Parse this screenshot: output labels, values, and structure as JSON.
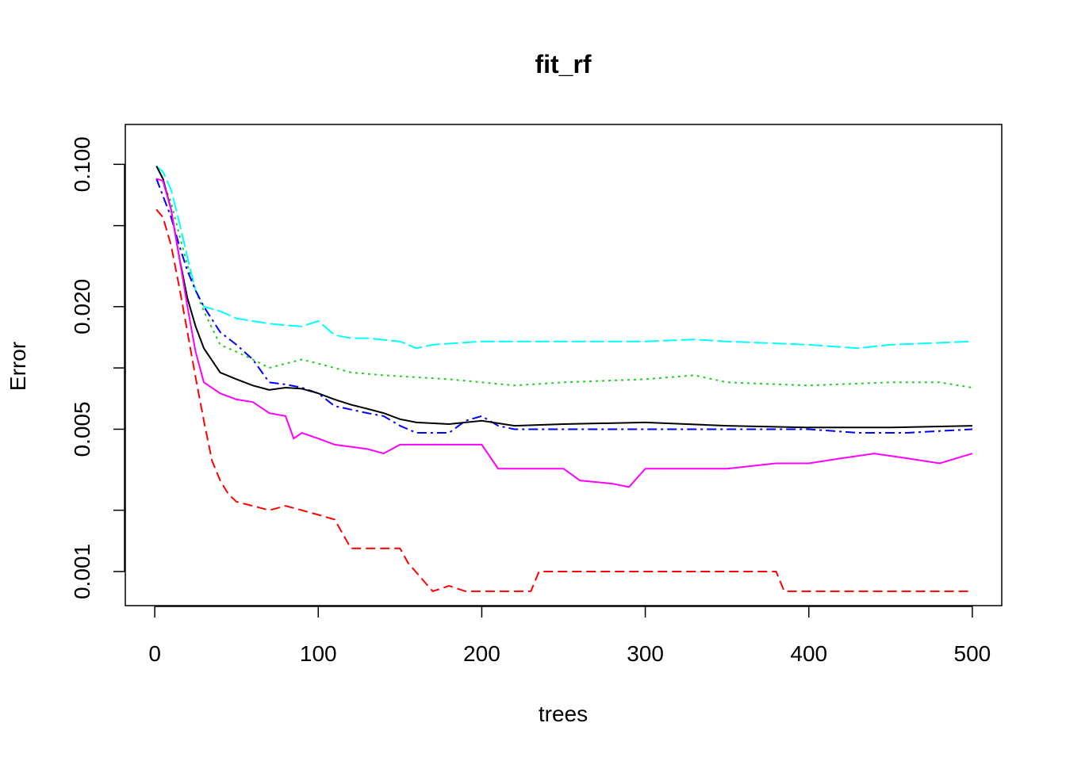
{
  "chart_data": {
    "type": "line",
    "title": "fit_rf",
    "xlabel": "trees",
    "ylabel": "Error",
    "log_y": true,
    "xlim": [
      -18,
      518
    ],
    "ylim": [
      0.00068,
      0.157
    ],
    "xticks": [
      0,
      100,
      200,
      300,
      400,
      500
    ],
    "xtick_labels": [
      "0",
      "100",
      "200",
      "300",
      "400",
      "500"
    ],
    "yticks": [
      0.1,
      0.05,
      0.02,
      0.01,
      0.005,
      0.002,
      0.001
    ],
    "ytick_labels": [
      "0.100",
      "",
      "0.020",
      "",
      "0.005",
      "",
      "0.001"
    ],
    "grid": false,
    "legend": "none",
    "series": [
      {
        "color": "#00ffff",
        "dash": "18,5",
        "points": [
          [
            1,
            0.098
          ],
          [
            5,
            0.092
          ],
          [
            10,
            0.075
          ],
          [
            15,
            0.052
          ],
          [
            20,
            0.035
          ],
          [
            25,
            0.024
          ],
          [
            30,
            0.02
          ],
          [
            40,
            0.019
          ],
          [
            50,
            0.0175
          ],
          [
            60,
            0.017
          ],
          [
            70,
            0.0165
          ],
          [
            80,
            0.0162
          ],
          [
            90,
            0.016
          ],
          [
            100,
            0.017
          ],
          [
            110,
            0.0145
          ],
          [
            120,
            0.014
          ],
          [
            130,
            0.014
          ],
          [
            150,
            0.0135
          ],
          [
            160,
            0.0125
          ],
          [
            170,
            0.013
          ],
          [
            200,
            0.0135
          ],
          [
            250,
            0.0135
          ],
          [
            300,
            0.0135
          ],
          [
            330,
            0.0138
          ],
          [
            350,
            0.0135
          ],
          [
            400,
            0.013
          ],
          [
            430,
            0.0125
          ],
          [
            450,
            0.013
          ],
          [
            500,
            0.0135
          ]
        ]
      },
      {
        "color": "#22cd22",
        "dash": "3,5",
        "points": [
          [
            1,
            0.085
          ],
          [
            5,
            0.082
          ],
          [
            10,
            0.065
          ],
          [
            15,
            0.045
          ],
          [
            20,
            0.032
          ],
          [
            25,
            0.024
          ],
          [
            30,
            0.019
          ],
          [
            40,
            0.013
          ],
          [
            50,
            0.012
          ],
          [
            60,
            0.011
          ],
          [
            70,
            0.01
          ],
          [
            80,
            0.0105
          ],
          [
            90,
            0.011
          ],
          [
            100,
            0.0105
          ],
          [
            110,
            0.01
          ],
          [
            120,
            0.0095
          ],
          [
            140,
            0.0092
          ],
          [
            160,
            0.009
          ],
          [
            180,
            0.0088
          ],
          [
            200,
            0.0085
          ],
          [
            220,
            0.0082
          ],
          [
            250,
            0.0085
          ],
          [
            300,
            0.0088
          ],
          [
            330,
            0.0092
          ],
          [
            350,
            0.0085
          ],
          [
            400,
            0.0082
          ],
          [
            450,
            0.0085
          ],
          [
            480,
            0.0085
          ],
          [
            500,
            0.008
          ]
        ]
      },
      {
        "color": "#0000ff",
        "dash": "12,5,3,5",
        "points": [
          [
            1,
            0.085
          ],
          [
            5,
            0.07
          ],
          [
            10,
            0.055
          ],
          [
            15,
            0.04
          ],
          [
            20,
            0.03
          ],
          [
            25,
            0.024
          ],
          [
            30,
            0.02
          ],
          [
            40,
            0.015
          ],
          [
            50,
            0.013
          ],
          [
            60,
            0.011
          ],
          [
            70,
            0.0085
          ],
          [
            80,
            0.0083
          ],
          [
            90,
            0.008
          ],
          [
            100,
            0.0075
          ],
          [
            110,
            0.0065
          ],
          [
            130,
            0.006
          ],
          [
            140,
            0.0058
          ],
          [
            150,
            0.0052
          ],
          [
            160,
            0.0048
          ],
          [
            180,
            0.0048
          ],
          [
            190,
            0.0055
          ],
          [
            200,
            0.0058
          ],
          [
            210,
            0.0052
          ],
          [
            220,
            0.005
          ],
          [
            250,
            0.005
          ],
          [
            300,
            0.005
          ],
          [
            350,
            0.005
          ],
          [
            400,
            0.005
          ],
          [
            430,
            0.0048
          ],
          [
            460,
            0.0048
          ],
          [
            500,
            0.005
          ]
        ]
      },
      {
        "color": "#000000",
        "dash": "",
        "points": [
          [
            1,
            0.098
          ],
          [
            5,
            0.085
          ],
          [
            10,
            0.06
          ],
          [
            15,
            0.035
          ],
          [
            20,
            0.022
          ],
          [
            25,
            0.016
          ],
          [
            30,
            0.0125
          ],
          [
            40,
            0.0095
          ],
          [
            50,
            0.0088
          ],
          [
            60,
            0.0082
          ],
          [
            70,
            0.0078
          ],
          [
            80,
            0.008
          ],
          [
            90,
            0.0079
          ],
          [
            100,
            0.0075
          ],
          [
            110,
            0.007
          ],
          [
            120,
            0.0066
          ],
          [
            130,
            0.0063
          ],
          [
            140,
            0.006
          ],
          [
            150,
            0.0056
          ],
          [
            160,
            0.0054
          ],
          [
            180,
            0.0053
          ],
          [
            200,
            0.0055
          ],
          [
            220,
            0.0052
          ],
          [
            250,
            0.0053
          ],
          [
            300,
            0.0054
          ],
          [
            350,
            0.0052
          ],
          [
            400,
            0.0051
          ],
          [
            450,
            0.0051
          ],
          [
            500,
            0.0052
          ]
        ]
      },
      {
        "color": "#ff00ff",
        "dash": "",
        "points": [
          [
            1,
            0.085
          ],
          [
            5,
            0.083
          ],
          [
            10,
            0.06
          ],
          [
            15,
            0.035
          ],
          [
            20,
            0.02
          ],
          [
            25,
            0.012
          ],
          [
            30,
            0.0085
          ],
          [
            40,
            0.0075
          ],
          [
            50,
            0.007
          ],
          [
            60,
            0.0068
          ],
          [
            70,
            0.006
          ],
          [
            80,
            0.0058
          ],
          [
            85,
            0.0045
          ],
          [
            90,
            0.0048
          ],
          [
            100,
            0.0045
          ],
          [
            110,
            0.0042
          ],
          [
            130,
            0.004
          ],
          [
            140,
            0.0038
          ],
          [
            150,
            0.0042
          ],
          [
            200,
            0.0042
          ],
          [
            210,
            0.0032
          ],
          [
            250,
            0.0032
          ],
          [
            260,
            0.0028
          ],
          [
            280,
            0.0027
          ],
          [
            290,
            0.0026
          ],
          [
            300,
            0.0032
          ],
          [
            340,
            0.0032
          ],
          [
            350,
            0.0032
          ],
          [
            380,
            0.0034
          ],
          [
            400,
            0.0034
          ],
          [
            420,
            0.0036
          ],
          [
            440,
            0.0038
          ],
          [
            460,
            0.0036
          ],
          [
            480,
            0.0034
          ],
          [
            500,
            0.0038
          ]
        ]
      },
      {
        "color": "#ff0000",
        "dash": "12,6",
        "points": [
          [
            1,
            0.06
          ],
          [
            5,
            0.055
          ],
          [
            10,
            0.04
          ],
          [
            15,
            0.025
          ],
          [
            20,
            0.015
          ],
          [
            25,
            0.009
          ],
          [
            30,
            0.0055
          ],
          [
            35,
            0.0035
          ],
          [
            40,
            0.0028
          ],
          [
            45,
            0.0024
          ],
          [
            50,
            0.0022
          ],
          [
            60,
            0.0021
          ],
          [
            70,
            0.002
          ],
          [
            80,
            0.0021
          ],
          [
            90,
            0.002
          ],
          [
            100,
            0.0019
          ],
          [
            110,
            0.0018
          ],
          [
            120,
            0.0013
          ],
          [
            150,
            0.0013
          ],
          [
            155,
            0.0011
          ],
          [
            170,
            0.0008
          ],
          [
            180,
            0.00085
          ],
          [
            190,
            0.0008
          ],
          [
            230,
            0.0008
          ],
          [
            235,
            0.001
          ],
          [
            300,
            0.001
          ],
          [
            380,
            0.001
          ],
          [
            385,
            0.0008
          ],
          [
            500,
            0.0008
          ]
        ]
      }
    ]
  }
}
